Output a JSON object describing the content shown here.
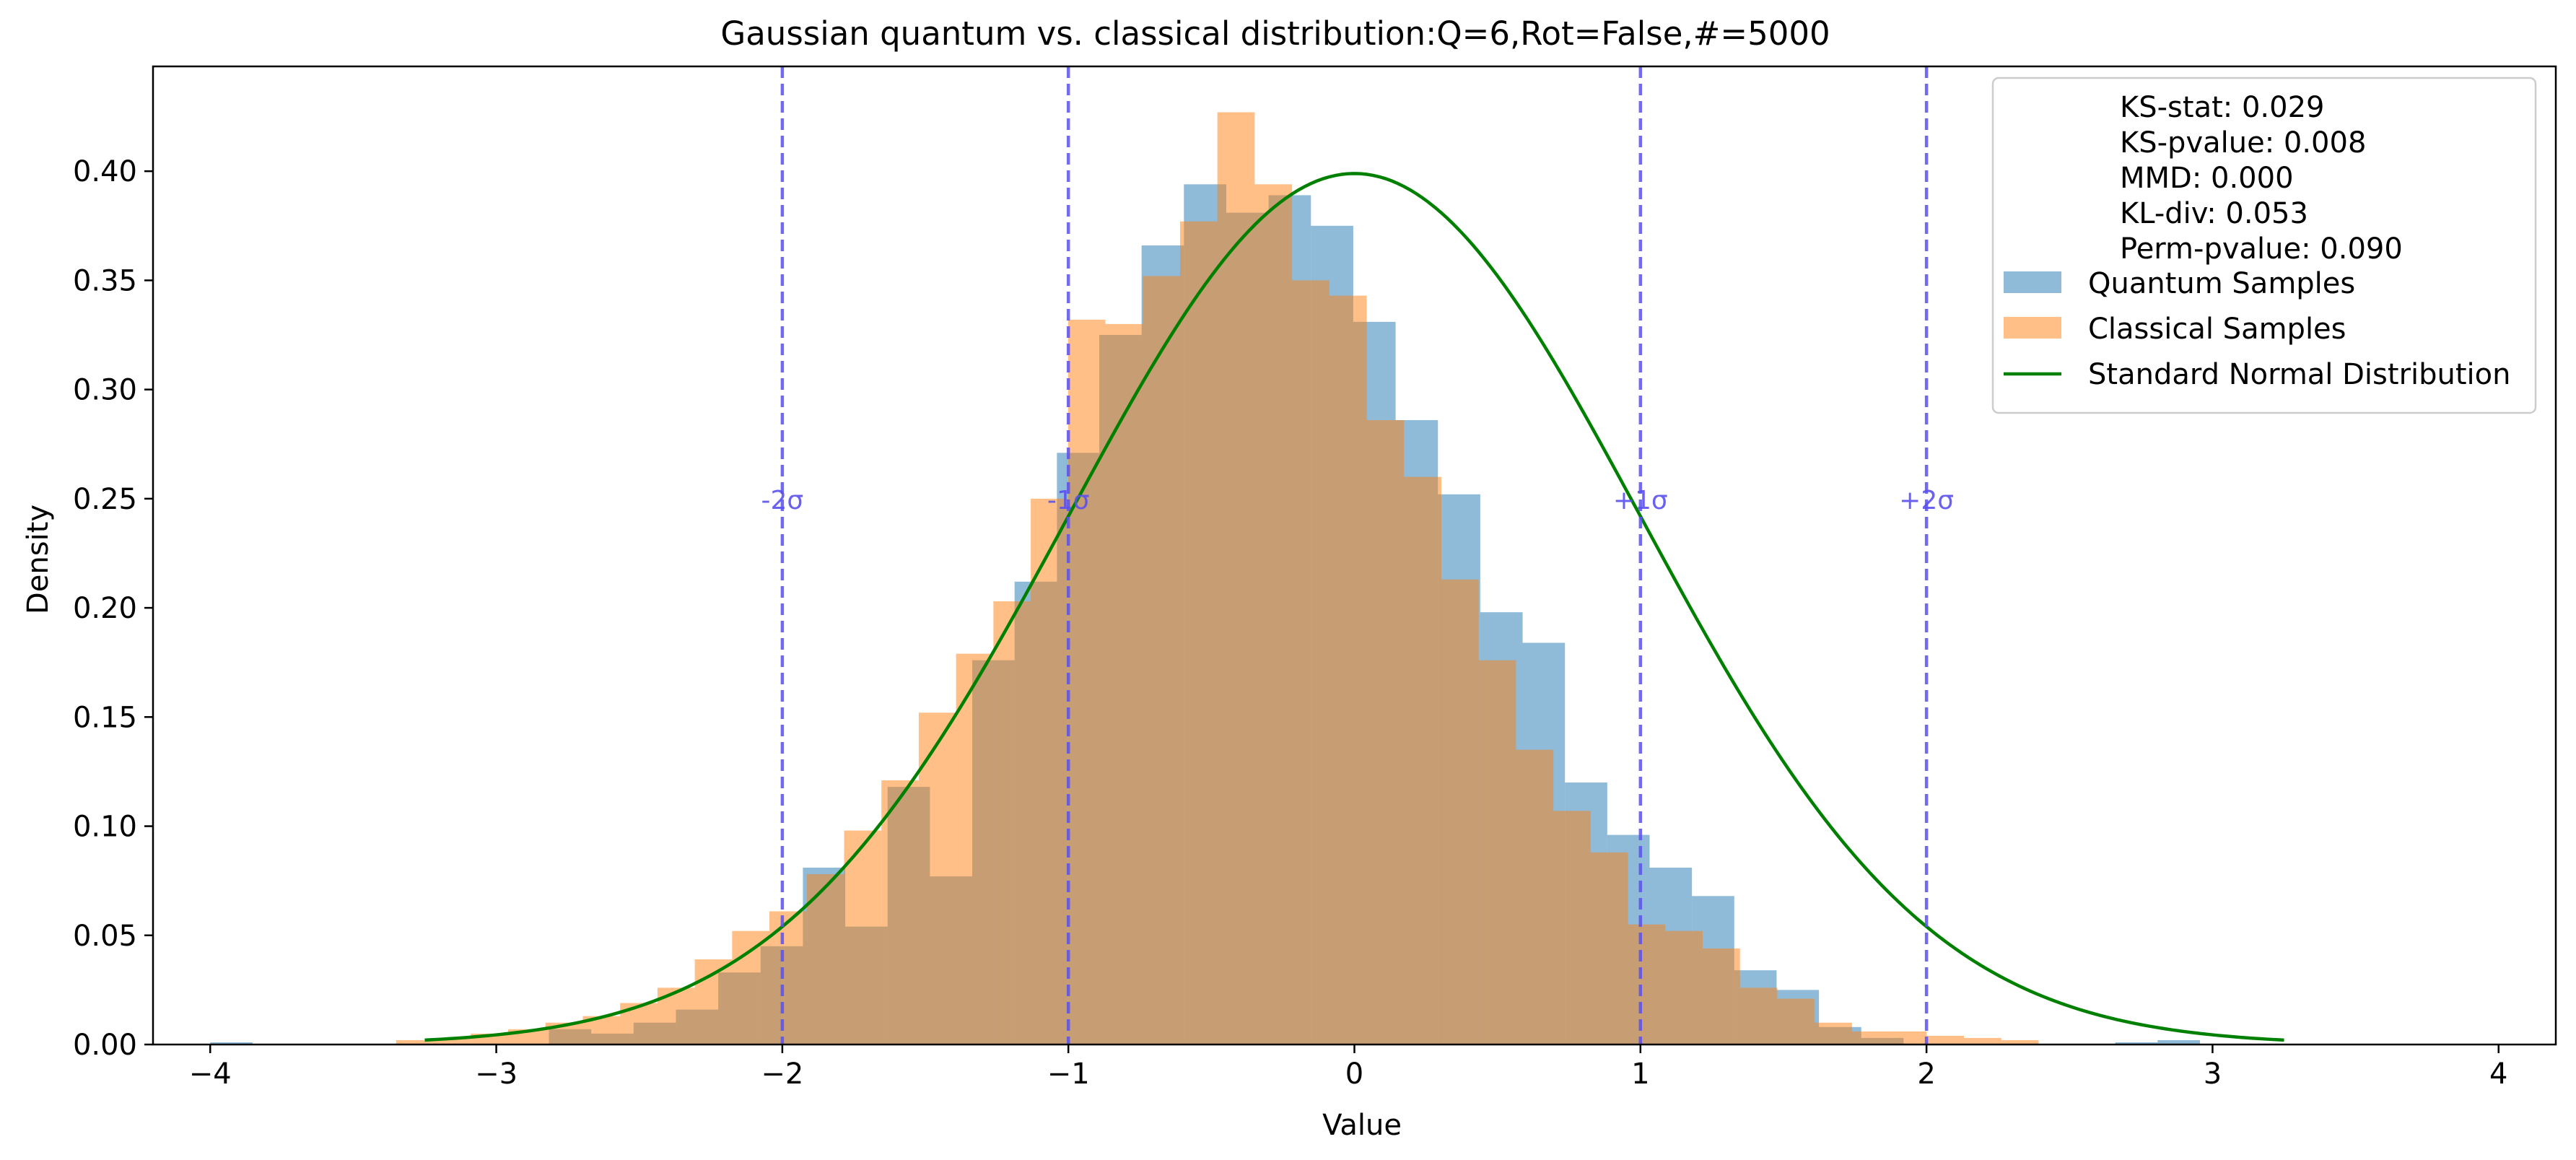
{
  "chart_data": {
    "type": "bar",
    "title": "Gaussian quantum vs. classical distribution:Q=6,Rot=False,#=5000",
    "xlabel": "Value",
    "ylabel": "Density",
    "xlim": [
      -4.2,
      4.2
    ],
    "ylim": [
      0,
      0.448
    ],
    "xticks": [
      -4,
      -3,
      -2,
      -1,
      0,
      1,
      2,
      3,
      4
    ],
    "xtick_labels": [
      "−4",
      "−3",
      "−2",
      "−1",
      "0",
      "1",
      "2",
      "3",
      "4"
    ],
    "yticks": [
      0.0,
      0.05,
      0.1,
      0.15,
      0.2,
      0.25,
      0.3,
      0.35,
      0.4
    ],
    "ytick_labels": [
      "0.00",
      "0.05",
      "0.10",
      "0.15",
      "0.20",
      "0.25",
      "0.30",
      "0.35",
      "0.40"
    ],
    "grid": false,
    "legend_position": "top-right",
    "stats_text": [
      "KS-stat: 0.029",
      "KS-pvalue: 0.008",
      "MMD: 0.000",
      "KL-div: 0.053",
      "Perm-pvalue: 0.090"
    ],
    "series": [
      {
        "name": "Quantum Samples",
        "kind": "histogram",
        "color": "#1f77b4",
        "opacity": 0.5,
        "bin_start": -4.0,
        "bin_width": 0.148,
        "values": [
          0.001,
          0,
          0,
          0,
          0,
          0,
          0,
          0,
          0.007,
          0.005,
          0.01,
          0.016,
          0.033,
          0.045,
          0.081,
          0.054,
          0.118,
          0.077,
          0.176,
          0.212,
          0.271,
          0.325,
          0.366,
          0.394,
          0.381,
          0.389,
          0.375,
          0.331,
          0.286,
          0.252,
          0.198,
          0.184,
          0.12,
          0.096,
          0.081,
          0.068,
          0.034,
          0.025,
          0.008,
          0.003,
          0,
          0,
          0,
          0,
          0,
          0.001,
          0.002
        ]
      },
      {
        "name": "Classical Samples",
        "kind": "histogram",
        "color": "#ff7f0e",
        "opacity": 0.5,
        "bin_start": -3.35,
        "bin_width": 0.1305,
        "values": [
          0.002,
          0.003,
          0.005,
          0.007,
          0.01,
          0.013,
          0.019,
          0.026,
          0.039,
          0.052,
          0.061,
          0.078,
          0.098,
          0.121,
          0.152,
          0.179,
          0.203,
          0.25,
          0.332,
          0.33,
          0.352,
          0.377,
          0.427,
          0.394,
          0.35,
          0.343,
          0.286,
          0.26,
          0.213,
          0.176,
          0.135,
          0.107,
          0.088,
          0.055,
          0.052,
          0.044,
          0.026,
          0.021,
          0.01,
          0.006,
          0.006,
          0.004,
          0.003,
          0.002
        ]
      },
      {
        "name": "Standard Normal Distribution",
        "kind": "line",
        "color": "#008000",
        "mean": 0,
        "std": 1,
        "x_range": [
          -3.25,
          3.25
        ]
      }
    ],
    "vlines": [
      {
        "x": -2,
        "label": "-2σ"
      },
      {
        "x": -1,
        "label": "-1σ"
      },
      {
        "x": 1,
        "label": "+1σ"
      },
      {
        "x": 2,
        "label": "+2σ"
      }
    ],
    "vline_color": "#5a50f0",
    "vline_label_y": 0.25
  }
}
